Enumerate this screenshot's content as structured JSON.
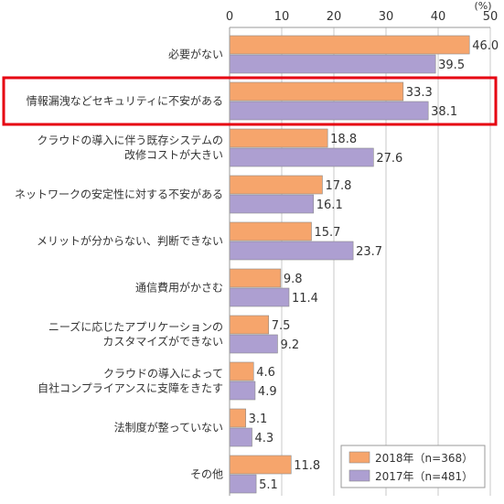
{
  "chart_data": {
    "type": "bar",
    "orientation": "horizontal",
    "unit": "(%)",
    "xlim": [
      0,
      50
    ],
    "ticks": [
      0,
      10,
      20,
      30,
      40,
      50
    ],
    "grid": true,
    "legend_position": "bottom-right",
    "highlighted_category_index": 1,
    "highlight_color": "#e60012",
    "categories": [
      [
        "必要がない"
      ],
      [
        "情報漏洩などセキュリティに不安がある"
      ],
      [
        "クラウドの導入に伴う既存システムの",
        "改修コストが大きい"
      ],
      [
        "ネットワークの安定性に対する不安がある"
      ],
      [
        "メリットが分からない、判断できない"
      ],
      [
        "通信費用がかさむ"
      ],
      [
        "ニーズに応じたアプリケーションの",
        "カスタマイズができない"
      ],
      [
        "クラウドの導入によって",
        "自社コンプライアンスに支障をきたす"
      ],
      [
        "法制度が整っていない"
      ],
      [
        "その他"
      ]
    ],
    "series": [
      {
        "name": "2018年（n=368）",
        "color": "#f6a56c",
        "values": [
          46.0,
          33.3,
          18.8,
          17.8,
          15.7,
          9.8,
          7.5,
          4.6,
          3.1,
          11.8
        ],
        "labels": [
          "46.0",
          "33.3",
          "18.8",
          "17.8",
          "15.7",
          "9.8",
          "7.5",
          "4.6",
          "3.1",
          "11.8"
        ]
      },
      {
        "name": "2017年（n=481）",
        "color": "#ad9fd1",
        "values": [
          39.5,
          38.1,
          27.6,
          16.1,
          23.7,
          11.4,
          9.2,
          4.9,
          4.3,
          5.1
        ],
        "labels": [
          "39.5",
          "38.1",
          "27.6",
          "16.1",
          "23.7",
          "11.4",
          "9.2",
          "4.9",
          "4.3",
          "5.1"
        ]
      }
    ]
  }
}
